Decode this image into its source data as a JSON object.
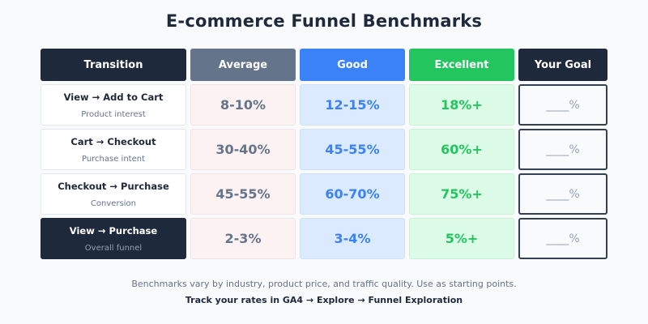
{
  "title": "E-commerce Funnel Benchmarks",
  "headers": {
    "transition": "Transition",
    "average": "Average",
    "good": "Good",
    "excellent": "Excellent",
    "goal": "Your Goal"
  },
  "rows": [
    {
      "name": "View → Add to Cart",
      "sub": "Product interest",
      "average": "8-10%",
      "good": "12-15%",
      "excellent": "18%+",
      "goal": "____%"
    },
    {
      "name": "Cart → Checkout",
      "sub": "Purchase intent",
      "average": "30-40%",
      "good": "45-55%",
      "excellent": "60%+",
      "goal": "____%"
    },
    {
      "name": "Checkout → Purchase",
      "sub": "Conversion",
      "average": "45-55%",
      "good": "60-70%",
      "excellent": "75%+",
      "goal": "____%"
    },
    {
      "name": "View → Purchase",
      "sub": "Overall funnel",
      "average": "2-3%",
      "good": "3-4%",
      "excellent": "5%+",
      "goal": "____%"
    }
  ],
  "footnote": "Benchmarks vary by industry, product price, and traffic quality. Use as starting points.",
  "cta": "Track your rates in GA4 → Explore → Funnel Exploration",
  "colors": {
    "dark": "#1e293b",
    "average": "#64748b",
    "good": "#3b82f6",
    "excellent": "#22c55e"
  }
}
